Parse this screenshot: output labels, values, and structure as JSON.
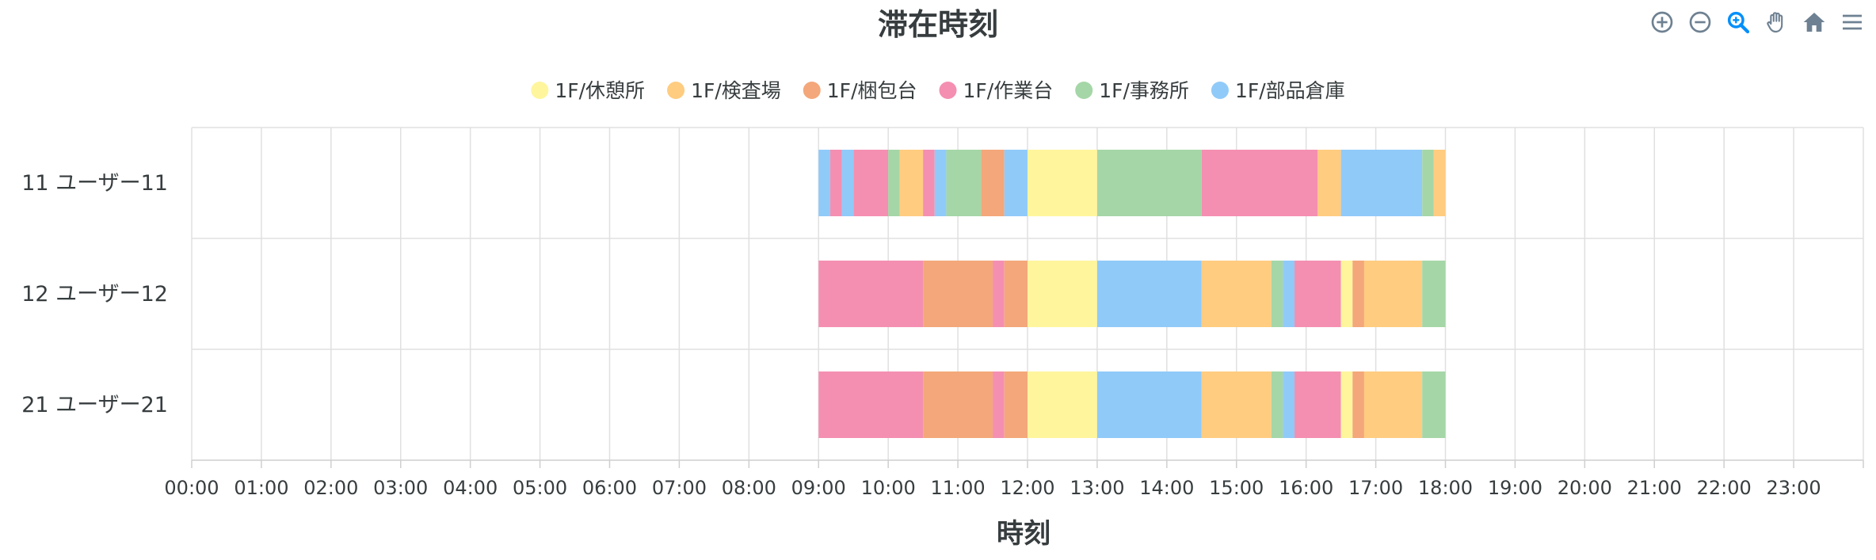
{
  "chart_data": {
    "type": "rangeBar",
    "title": "滞在時刻",
    "xlabel": "時刻",
    "ylabel": "",
    "xlim": [
      "00:00",
      "24:00"
    ],
    "x_ticks": [
      "00:00",
      "01:00",
      "02:00",
      "03:00",
      "04:00",
      "05:00",
      "06:00",
      "07:00",
      "08:00",
      "09:00",
      "10:00",
      "11:00",
      "12:00",
      "13:00",
      "14:00",
      "15:00",
      "16:00",
      "17:00",
      "18:00",
      "19:00",
      "20:00",
      "21:00",
      "22:00",
      "23:00"
    ],
    "grid": true,
    "legend_position": "top-center",
    "legend": [
      {
        "name": "1F/休憩所",
        "color": "#fff59d"
      },
      {
        "name": "1F/検査場",
        "color": "#ffcc80"
      },
      {
        "name": "1F/梱包台",
        "color": "#f4a77a"
      },
      {
        "name": "1F/作業台",
        "color": "#f48fb1"
      },
      {
        "name": "1F/事務所",
        "color": "#a5d6a7"
      },
      {
        "name": "1F/部品倉庫",
        "color": "#90caf9"
      }
    ],
    "categories": [
      "11 ユーザー11",
      "12 ユーザー12",
      "21 ユーザー21"
    ],
    "segments": [
      [
        {
          "location": "1F/部品倉庫",
          "start": "09:00",
          "end": "09:10"
        },
        {
          "location": "1F/作業台",
          "start": "09:10",
          "end": "09:20"
        },
        {
          "location": "1F/部品倉庫",
          "start": "09:20",
          "end": "09:30"
        },
        {
          "location": "1F/作業台",
          "start": "09:30",
          "end": "10:00"
        },
        {
          "location": "1F/事務所",
          "start": "10:00",
          "end": "10:10"
        },
        {
          "location": "1F/検査場",
          "start": "10:10",
          "end": "10:30"
        },
        {
          "location": "1F/作業台",
          "start": "10:30",
          "end": "10:40"
        },
        {
          "location": "1F/部品倉庫",
          "start": "10:40",
          "end": "10:50"
        },
        {
          "location": "1F/事務所",
          "start": "10:50",
          "end": "11:20"
        },
        {
          "location": "1F/梱包台",
          "start": "11:20",
          "end": "11:40"
        },
        {
          "location": "1F/部品倉庫",
          "start": "11:40",
          "end": "12:00"
        },
        {
          "location": "1F/休憩所",
          "start": "12:00",
          "end": "13:00"
        },
        {
          "location": "1F/事務所",
          "start": "13:00",
          "end": "14:30"
        },
        {
          "location": "1F/作業台",
          "start": "14:30",
          "end": "16:10"
        },
        {
          "location": "1F/検査場",
          "start": "16:10",
          "end": "16:30"
        },
        {
          "location": "1F/部品倉庫",
          "start": "16:30",
          "end": "17:40"
        },
        {
          "location": "1F/事務所",
          "start": "17:40",
          "end": "17:50"
        },
        {
          "location": "1F/検査場",
          "start": "17:50",
          "end": "18:00"
        }
      ],
      [
        {
          "location": "1F/作業台",
          "start": "09:00",
          "end": "10:30"
        },
        {
          "location": "1F/梱包台",
          "start": "10:30",
          "end": "11:30"
        },
        {
          "location": "1F/作業台",
          "start": "11:30",
          "end": "11:40"
        },
        {
          "location": "1F/梱包台",
          "start": "11:40",
          "end": "12:00"
        },
        {
          "location": "1F/休憩所",
          "start": "12:00",
          "end": "13:00"
        },
        {
          "location": "1F/部品倉庫",
          "start": "13:00",
          "end": "14:30"
        },
        {
          "location": "1F/検査場",
          "start": "14:30",
          "end": "15:30"
        },
        {
          "location": "1F/事務所",
          "start": "15:30",
          "end": "15:40"
        },
        {
          "location": "1F/部品倉庫",
          "start": "15:40",
          "end": "15:50"
        },
        {
          "location": "1F/作業台",
          "start": "15:50",
          "end": "16:30"
        },
        {
          "location": "1F/休憩所",
          "start": "16:30",
          "end": "16:40"
        },
        {
          "location": "1F/梱包台",
          "start": "16:40",
          "end": "16:50"
        },
        {
          "location": "1F/検査場",
          "start": "16:50",
          "end": "17:40"
        },
        {
          "location": "1F/事務所",
          "start": "17:40",
          "end": "18:00"
        }
      ],
      [
        {
          "location": "1F/作業台",
          "start": "09:00",
          "end": "10:30"
        },
        {
          "location": "1F/梱包台",
          "start": "10:30",
          "end": "11:30"
        },
        {
          "location": "1F/作業台",
          "start": "11:30",
          "end": "11:40"
        },
        {
          "location": "1F/梱包台",
          "start": "11:40",
          "end": "12:00"
        },
        {
          "location": "1F/休憩所",
          "start": "12:00",
          "end": "13:00"
        },
        {
          "location": "1F/部品倉庫",
          "start": "13:00",
          "end": "14:30"
        },
        {
          "location": "1F/検査場",
          "start": "14:30",
          "end": "15:30"
        },
        {
          "location": "1F/事務所",
          "start": "15:30",
          "end": "15:40"
        },
        {
          "location": "1F/部品倉庫",
          "start": "15:40",
          "end": "15:50"
        },
        {
          "location": "1F/作業台",
          "start": "15:50",
          "end": "16:30"
        },
        {
          "location": "1F/休憩所",
          "start": "16:30",
          "end": "16:40"
        },
        {
          "location": "1F/梱包台",
          "start": "16:40",
          "end": "16:50"
        },
        {
          "location": "1F/検査場",
          "start": "16:50",
          "end": "17:40"
        },
        {
          "location": "1F/事務所",
          "start": "17:40",
          "end": "18:00"
        }
      ]
    ]
  },
  "toolbar": {
    "icons": [
      "zoom-in-icon",
      "zoom-out-icon",
      "selection-zoom-icon",
      "pan-icon",
      "home-icon",
      "menu-icon"
    ],
    "icon_color": "#6e8192",
    "active_color": "#008ffb"
  }
}
